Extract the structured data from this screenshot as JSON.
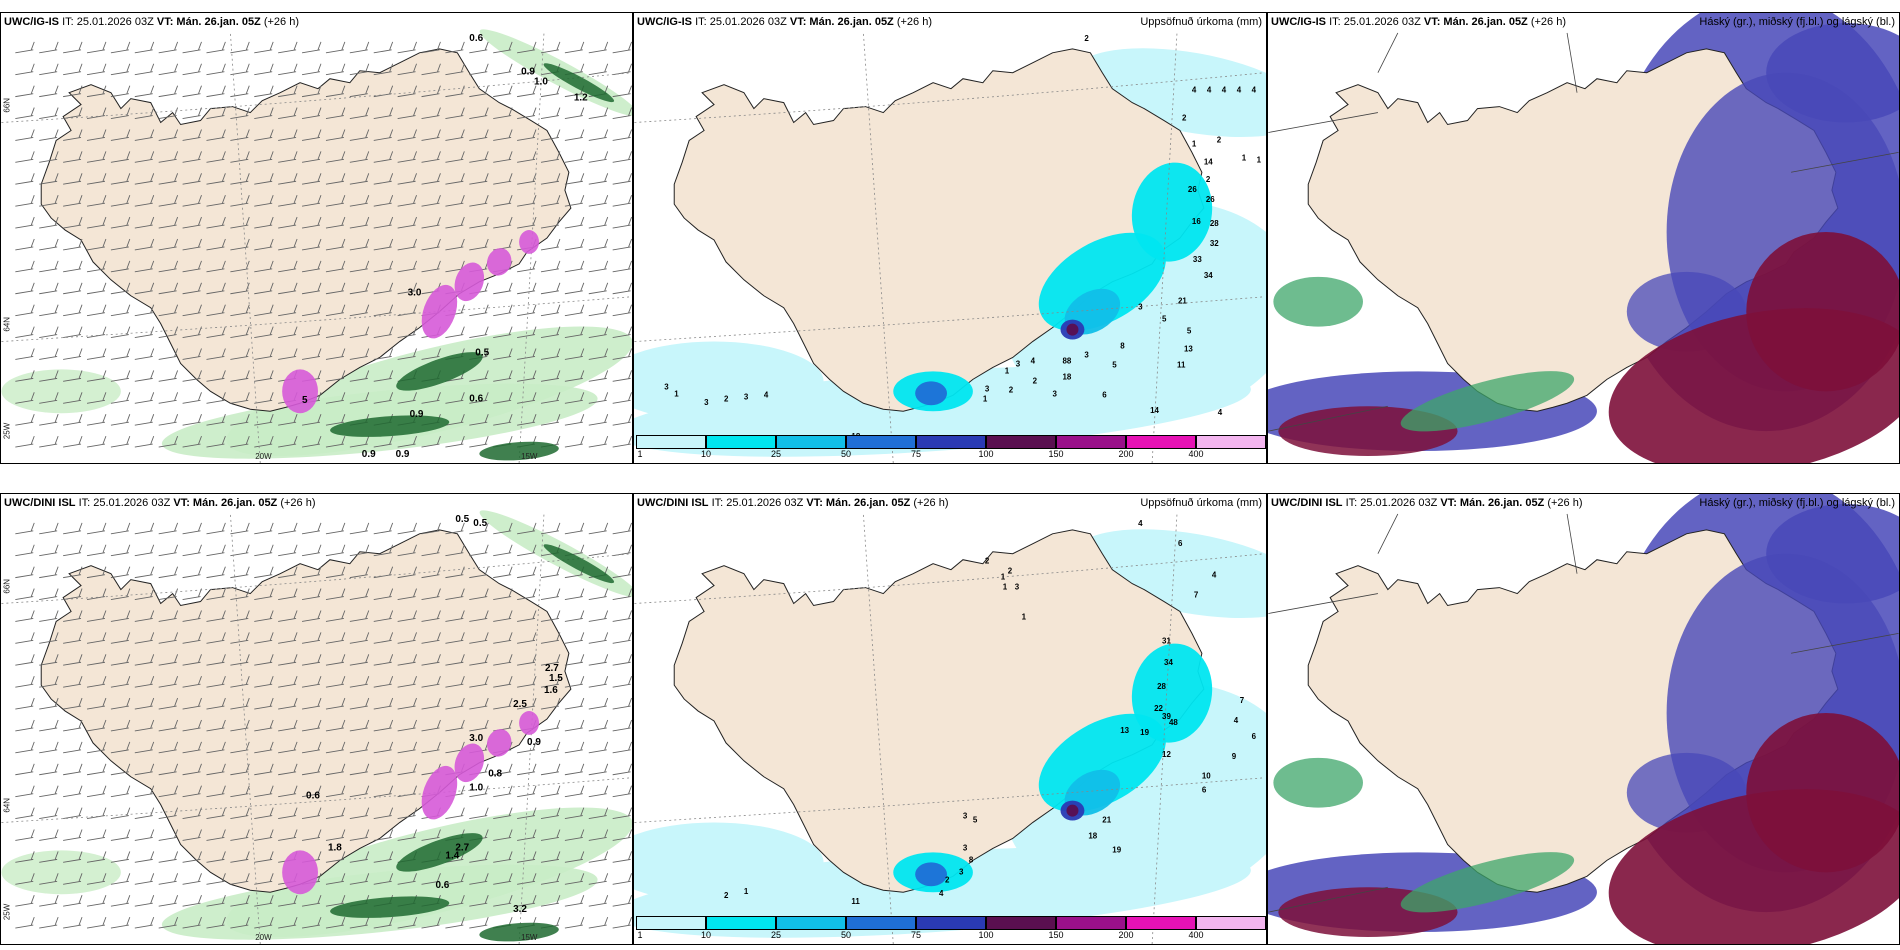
{
  "panels": [
    {
      "model": "UWC/IG-IS",
      "it": "IT: 25.01.2026 03Z",
      "vt": "VT: Mán. 26.jan. 05Z",
      "lead": "(+26 h)",
      "right_title": "",
      "lat_labels": [
        "66N",
        "64N",
        "25W"
      ],
      "lon_labels": [
        "20W",
        "15W"
      ],
      "values": [
        "0.6",
        "0.9",
        "1.0",
        "1.2",
        "0.5",
        "0.9",
        "0.6",
        "0.9",
        "0.9",
        "3.0",
        "5"
      ]
    },
    {
      "model": "UWC/IG-IS",
      "it": "IT: 25.01.2026 03Z",
      "vt": "VT: Mán. 26.jan. 05Z",
      "lead": "(+26 h)",
      "right_title": "Uppsöfnuð úrkoma (mm)",
      "values": [
        "2",
        "4",
        "4",
        "4",
        "4",
        "4",
        "2",
        "1",
        "2",
        "14",
        "1",
        "1",
        "2",
        "26",
        "26",
        "16",
        "28",
        "32",
        "33",
        "34",
        "21",
        "3",
        "5",
        "5",
        "13",
        "11",
        "14",
        "4",
        "6",
        "5",
        "3",
        "8",
        "18",
        "88",
        "3",
        "2",
        "4",
        "3",
        "1",
        "2",
        "3",
        "1",
        "3",
        "1",
        "3",
        "2",
        "3",
        "4",
        "18"
      ],
      "colorbar": [
        "1",
        "10",
        "25",
        "50",
        "75",
        "100",
        "150",
        "200",
        "400"
      ]
    },
    {
      "model": "UWC/IG-IS",
      "it": "IT: 25.01.2026 03Z",
      "vt": "VT: Mán. 26.jan. 05Z",
      "lead": "(+26 h)",
      "right_title": "Háský (gr.), miðský (fj.bl.) og lágský (bl.)"
    },
    {
      "model": "UWC/DINI ISL",
      "it": "IT: 25.01.2026 03Z",
      "vt": "VT: Mán. 26.jan. 05Z",
      "lead": "(+26 h)",
      "right_title": "",
      "lat_labels": [
        "66N",
        "64N",
        "25W"
      ],
      "lon_labels": [
        "20W",
        "15W"
      ],
      "values": [
        "0.5",
        "0.5",
        "2.7",
        "1.5",
        "1.6",
        "2.5",
        "3.0",
        "0.8",
        "1.0",
        "0.9",
        "2.7",
        "1.4",
        "0.6",
        "3.2",
        "0.6",
        "1.8"
      ]
    },
    {
      "model": "UWC/DINI ISL",
      "it": "IT: 25.01.2026 03Z",
      "vt": "VT: Mán. 26.jan. 05Z",
      "lead": "(+26 h)",
      "right_title": "Uppsöfnuð úrkoma (mm)",
      "values": [
        "4",
        "6",
        "2",
        "2",
        "1",
        "3",
        "4",
        "1",
        "7",
        "1",
        "31",
        "34",
        "28",
        "22",
        "39",
        "48",
        "13",
        "19",
        "12",
        "9",
        "10",
        "6",
        "7",
        "4",
        "6",
        "21",
        "18",
        "19",
        "52",
        "11",
        "3",
        "2",
        "1",
        "3",
        "5",
        "3",
        "8",
        "3",
        "2",
        "4"
      ],
      "colorbar": [
        "1",
        "10",
        "25",
        "50",
        "75",
        "100",
        "150",
        "200",
        "400"
      ]
    },
    {
      "model": "UWC/DINI ISL",
      "it": "IT: 25.01.2026 03Z",
      "vt": "VT: Mán. 26.jan. 05Z",
      "lead": "(+26 h)",
      "right_title": "Háský (gr.), miðský (fj.bl.) og lágský (bl.)"
    }
  ],
  "colors": {
    "land": "#f4e6d6",
    "precip_scale": [
      "#c8f6fb",
      "#00e6f0",
      "#11bfe8",
      "#1f6fd6",
      "#2a3ab4",
      "#5a0f50",
      "#9a108a",
      "#e612b5",
      "#f3b5ef"
    ],
    "high_cloud": "#3ea66a",
    "mid_cloud": "#4848b8",
    "low_cloud": "#7d0f3a",
    "green_light": "#c9ecc6",
    "green_dark": "#1e6a30",
    "magenta": "#d65ad8"
  }
}
